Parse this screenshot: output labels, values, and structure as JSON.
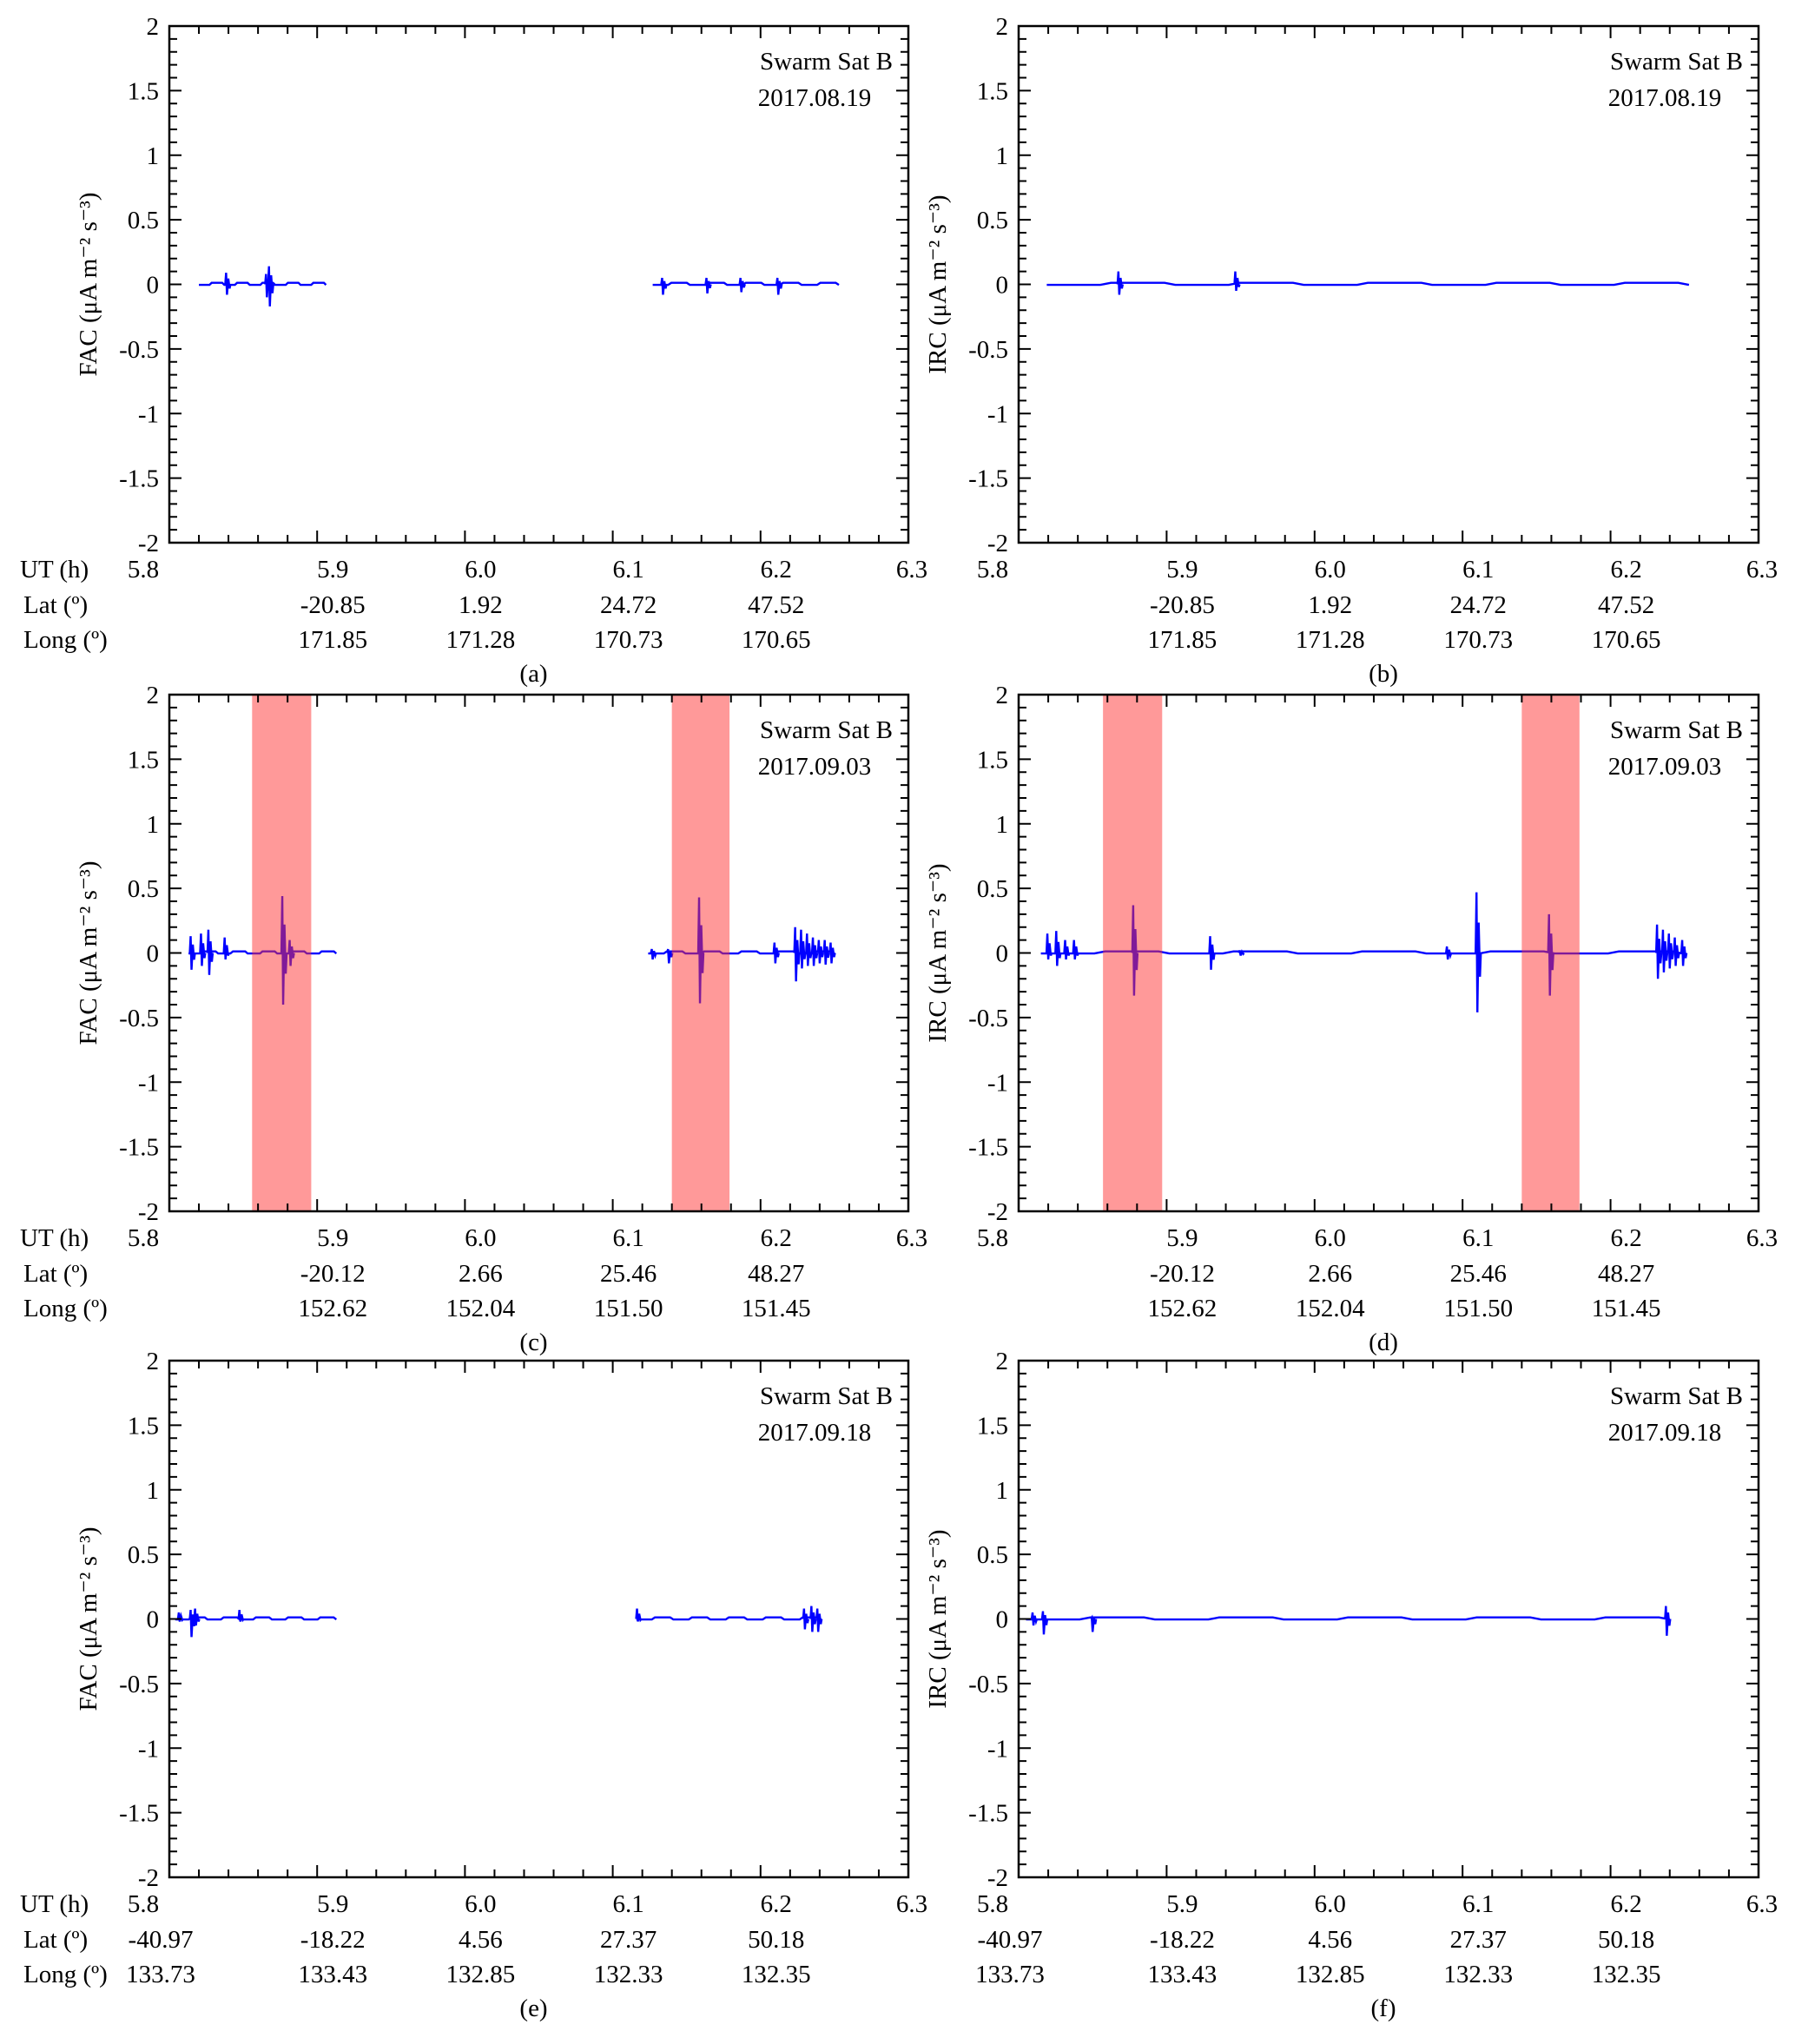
{
  "colors": {
    "trace": "#0000ff",
    "band": "#ff3333",
    "axis": "#000000"
  },
  "chart_data": [
    {
      "type": "line",
      "panel_label": "(a)",
      "ylabel": "FAC (μA m⁻² s⁻³)",
      "annotation": [
        "Swarm Sat B",
        "2017.08.19"
      ],
      "xlim": [
        5.8,
        6.3
      ],
      "ylim": [
        -2,
        2
      ],
      "yticks": [
        "2",
        "1.5",
        "1",
        "0.5",
        "0",
        "-0.5",
        "-1",
        "-1.5",
        "-2"
      ],
      "rows": {
        "UT (h)": [
          "5.8",
          "5.9",
          "6.0",
          "6.1",
          "6.2",
          "6.3"
        ],
        "Lat (º)": [
          "",
          "-20.85",
          "1.92",
          "24.72",
          "47.52",
          ""
        ],
        "Long (º)": [
          "",
          "171.85",
          "171.28",
          "170.73",
          "170.65",
          ""
        ]
      },
      "bands": [],
      "segments": [
        [
          5.82,
          5.906
        ],
        [
          6.127,
          6.253
        ]
      ],
      "spikes": [
        [
          5.839,
          0.09,
          -0.08
        ],
        [
          5.868,
          0.14,
          -0.17
        ],
        [
          5.866,
          0.08,
          -0.1
        ],
        [
          6.134,
          0.05,
          -0.08
        ],
        [
          6.164,
          0.05,
          -0.07
        ],
        [
          6.187,
          0.05,
          -0.06
        ],
        [
          6.212,
          0.05,
          -0.08
        ]
      ]
    },
    {
      "type": "line",
      "panel_label": "(b)",
      "ylabel": "IRC (μA m⁻² s⁻³)",
      "annotation": [
        "Swarm Sat B",
        "2017.08.19"
      ],
      "xlim": [
        5.8,
        6.3
      ],
      "ylim": [
        -2,
        2
      ],
      "yticks": [
        "2",
        "1.5",
        "1",
        "0.5",
        "0",
        "-0.5",
        "-1",
        "-1.5",
        "-2"
      ],
      "rows": {
        "UT (h)": [
          "5.8",
          "5.9",
          "6.0",
          "6.1",
          "6.2",
          "6.3"
        ],
        "Lat (º)": [
          "",
          "-20.85",
          "1.92",
          "24.72",
          "47.52",
          ""
        ],
        "Long (º)": [
          "",
          "171.85",
          "171.28",
          "170.73",
          "170.65",
          ""
        ]
      },
      "bands": [],
      "segments": [
        [
          5.819,
          6.253
        ]
      ],
      "spikes": [
        [
          5.868,
          0.1,
          -0.08
        ],
        [
          5.947,
          0.1,
          -0.05
        ]
      ]
    },
    {
      "type": "line",
      "panel_label": "(c)",
      "ylabel": "FAC (μA m⁻² s⁻³)",
      "annotation": [
        "Swarm Sat B",
        "2017.09.03"
      ],
      "xlim": [
        5.8,
        6.3
      ],
      "ylim": [
        -2,
        2
      ],
      "yticks": [
        "2",
        "1.5",
        "1",
        "0.5",
        "0",
        "-0.5",
        "-1",
        "-1.5",
        "-2"
      ],
      "rows": {
        "UT (h)": [
          "5.8",
          "5.9",
          "6.0",
          "6.1",
          "6.2",
          "6.3"
        ],
        "Lat (º)": [
          "",
          "-20.12",
          "2.66",
          "25.46",
          "48.27",
          ""
        ],
        "Long (º)": [
          "",
          "152.62",
          "152.04",
          "151.50",
          "151.45",
          ""
        ]
      },
      "bands": [
        [
          5.856,
          5.896
        ],
        [
          6.14,
          6.179
        ]
      ],
      "segments": [
        [
          5.813,
          5.913
        ],
        [
          6.124,
          6.25
        ]
      ],
      "spikes": [
        [
          5.815,
          0.13,
          -0.13
        ],
        [
          5.822,
          0.15,
          -0.1
        ],
        [
          5.827,
          0.18,
          -0.17
        ],
        [
          5.838,
          0.12,
          -0.05
        ],
        [
          5.877,
          0.44,
          -0.4
        ],
        [
          5.882,
          0.1,
          -0.1
        ],
        [
          6.127,
          0.03,
          -0.05
        ],
        [
          6.138,
          0.03,
          -0.08
        ],
        [
          6.159,
          0.43,
          -0.39
        ],
        [
          6.21,
          0.08,
          -0.08
        ],
        [
          6.224,
          0.2,
          -0.22
        ],
        [
          6.228,
          0.18,
          -0.12
        ],
        [
          6.232,
          0.15,
          -0.1
        ],
        [
          6.236,
          0.12,
          -0.1
        ],
        [
          6.24,
          0.1,
          -0.08
        ],
        [
          6.244,
          0.1,
          -0.09
        ],
        [
          6.248,
          0.08,
          -0.08
        ]
      ]
    },
    {
      "type": "line",
      "panel_label": "(d)",
      "ylabel": "IRC (μA m⁻² s⁻³)",
      "annotation": [
        "Swarm Sat B",
        "2017.09.03"
      ],
      "xlim": [
        5.8,
        6.3
      ],
      "ylim": [
        -2,
        2
      ],
      "yticks": [
        "2",
        "1.5",
        "1",
        "0.5",
        "0",
        "-0.5",
        "-1",
        "-1.5",
        "-2"
      ],
      "rows": {
        "UT (h)": [
          "5.8",
          "5.9",
          "6.0",
          "6.1",
          "6.2",
          "6.3"
        ],
        "Lat (º)": [
          "",
          "-20.12",
          "2.66",
          "25.46",
          "48.27",
          ""
        ],
        "Long (º)": [
          "",
          "152.62",
          "152.04",
          "151.50",
          "151.45",
          ""
        ]
      },
      "bands": [
        [
          5.857,
          5.897
        ],
        [
          6.14,
          6.179
        ]
      ],
      "segments": [
        [
          5.815,
          6.249
        ]
      ],
      "spikes": [
        [
          5.82,
          0.15,
          -0.05
        ],
        [
          5.826,
          0.17,
          -0.1
        ],
        [
          5.832,
          0.1,
          -0.05
        ],
        [
          5.838,
          0.1,
          -0.05
        ],
        [
          5.878,
          0.37,
          -0.33
        ],
        [
          5.93,
          0.13,
          -0.13
        ],
        [
          5.95,
          0.02,
          -0.02
        ],
        [
          6.09,
          0.05,
          -0.05
        ],
        [
          6.11,
          0.47,
          -0.46
        ],
        [
          6.159,
          0.3,
          -0.33
        ],
        [
          6.232,
          0.22,
          -0.2
        ],
        [
          6.236,
          0.18,
          -0.15
        ],
        [
          6.24,
          0.15,
          -0.12
        ],
        [
          6.244,
          0.12,
          -0.1
        ],
        [
          6.249,
          0.1,
          -0.1
        ]
      ]
    },
    {
      "type": "line",
      "panel_label": "(e)",
      "ylabel": "FAC (μA m⁻² s⁻³)",
      "annotation": [
        "Swarm Sat B",
        "2017.09.18"
      ],
      "xlim": [
        5.8,
        6.3
      ],
      "ylim": [
        -2,
        2
      ],
      "yticks": [
        "2",
        "1.5",
        "1",
        "0.5",
        "0",
        "-0.5",
        "-1",
        "-1.5",
        "-2"
      ],
      "rows": {
        "UT (h)": [
          "5.8",
          "5.9",
          "6.0",
          "6.1",
          "6.2",
          "6.3"
        ],
        "Lat (º)": [
          "-40.97",
          "-18.22",
          "4.56",
          "27.37",
          "50.18",
          ""
        ],
        "Long (º)": [
          "133.73",
          "133.43",
          "132.85",
          "132.33",
          "132.35",
          ""
        ]
      },
      "bands": [],
      "segments": [
        [
          5.804,
          5.913
        ],
        [
          6.116,
          6.241
        ]
      ],
      "spikes": [
        [
          5.807,
          0.05,
          -0.02
        ],
        [
          5.815,
          0.07,
          -0.14
        ],
        [
          5.818,
          0.08,
          -0.05
        ],
        [
          5.848,
          0.07,
          -0.02
        ],
        [
          6.117,
          0.08,
          -0.02
        ],
        [
          6.23,
          0.08,
          -0.08
        ],
        [
          6.235,
          0.1,
          -0.1
        ],
        [
          6.239,
          0.08,
          -0.1
        ]
      ]
    },
    {
      "type": "line",
      "panel_label": "(f)",
      "ylabel": "IRC (μA m⁻² s⁻³)",
      "annotation": [
        "Swarm Sat B",
        "2017.09.18"
      ],
      "xlim": [
        5.8,
        6.3
      ],
      "ylim": [
        -2,
        2
      ],
      "yticks": [
        "2",
        "1.5",
        "1",
        "0.5",
        "0",
        "-0.5",
        "-1",
        "-1.5",
        "-2"
      ],
      "rows": {
        "UT (h)": [
          "5.8",
          "5.9",
          "6.0",
          "6.1",
          "6.2",
          "6.3"
        ],
        "Lat (º)": [
          "-40.97",
          "-18.22",
          "4.56",
          "27.37",
          "50.18",
          ""
        ],
        "Long (º)": [
          "133.73",
          "133.43",
          "132.85",
          "132.33",
          "132.35",
          ""
        ]
      },
      "bands": [],
      "segments": [
        [
          5.805,
          6.24
        ]
      ],
      "spikes": [
        [
          5.81,
          0.05,
          -0.05
        ],
        [
          5.817,
          0.06,
          -0.12
        ],
        [
          5.85,
          0.01,
          -0.1
        ],
        [
          6.238,
          0.1,
          -0.13
        ]
      ]
    }
  ]
}
